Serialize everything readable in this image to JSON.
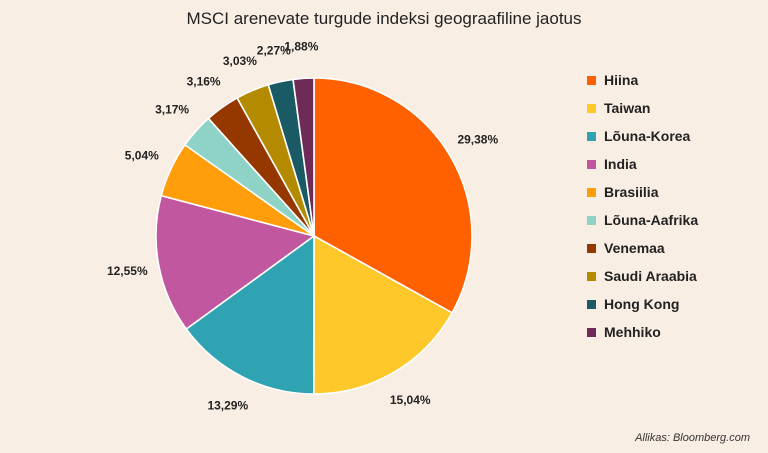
{
  "chart_data": {
    "type": "pie",
    "title": "MSCI arenevate turgude indeksi geograafiline jaotus",
    "slices": [
      {
        "label": "Hiina",
        "value": 29.38,
        "display": "29,38%",
        "color": "#ff6000"
      },
      {
        "label": "Taiwan",
        "value": 15.04,
        "display": "15,04%",
        "color": "#ffc82a"
      },
      {
        "label": "Lõuna-Korea",
        "value": 13.29,
        "display": "13,29%",
        "color": "#30a3b2"
      },
      {
        "label": "India",
        "value": 12.55,
        "display": "12,55%",
        "color": "#c0579f"
      },
      {
        "label": "Brasiilia",
        "value": 5.04,
        "display": "5,04%",
        "color": "#ff9d0a"
      },
      {
        "label": "Lõuna-Aafrika",
        "value": 3.17,
        "display": "3,17%",
        "color": "#8fd3c7"
      },
      {
        "label": "Venemaa",
        "value": 3.16,
        "display": "3,16%",
        "color": "#953800"
      },
      {
        "label": "Saudi Araabia",
        "value": 3.03,
        "display": "3,03%",
        "color": "#b38a00"
      },
      {
        "label": "Hong Kong",
        "value": 2.27,
        "display": "2,27%",
        "color": "#1a5a65"
      },
      {
        "label": "Mehhiko",
        "value": 1.88,
        "display": "1,88%",
        "color": "#6e2b58"
      }
    ],
    "legend_position": "right"
  },
  "source": "Allikas: Bloomberg.com"
}
